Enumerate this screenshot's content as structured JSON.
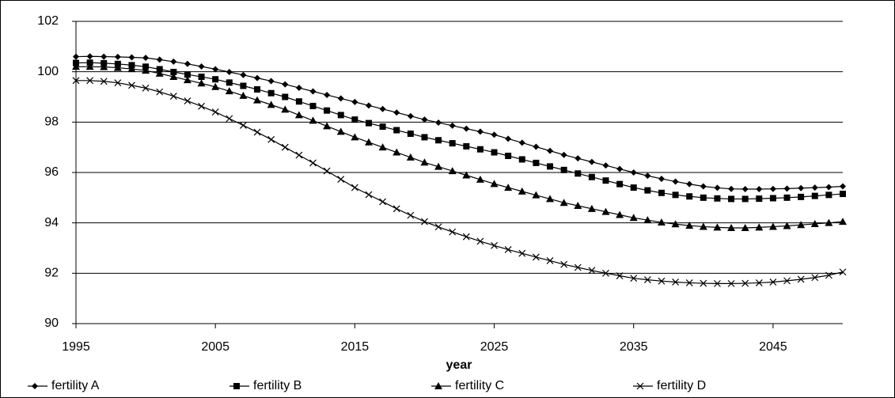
{
  "chart_data": {
    "type": "line",
    "x_label": "year",
    "x": [
      1995,
      1996,
      1997,
      1998,
      1999,
      2000,
      2001,
      2002,
      2003,
      2004,
      2005,
      2006,
      2007,
      2008,
      2009,
      2010,
      2011,
      2012,
      2013,
      2014,
      2015,
      2016,
      2017,
      2018,
      2019,
      2020,
      2021,
      2022,
      2023,
      2024,
      2025,
      2026,
      2027,
      2028,
      2029,
      2030,
      2031,
      2032,
      2033,
      2034,
      2035,
      2036,
      2037,
      2038,
      2039,
      2040,
      2041,
      2042,
      2043,
      2044,
      2045,
      2046,
      2047,
      2048,
      2049,
      2050
    ],
    "xlim": [
      1995,
      2050
    ],
    "xticks": [
      1995,
      2005,
      2015,
      2025,
      2035,
      2045
    ],
    "ylim": [
      90,
      102
    ],
    "yticks": [
      90,
      92,
      94,
      96,
      98,
      100,
      102
    ],
    "grid": true,
    "legend": "bottom",
    "series": [
      {
        "name": "fertility A",
        "color": "#000000",
        "marker": "diamond",
        "values": [
          100.6,
          100.61,
          100.6,
          100.59,
          100.57,
          100.55,
          100.48,
          100.4,
          100.31,
          100.21,
          100.1,
          99.99,
          99.87,
          99.75,
          99.63,
          99.5,
          99.36,
          99.22,
          99.08,
          98.94,
          98.8,
          98.66,
          98.52,
          98.38,
          98.24,
          98.1,
          97.98,
          97.86,
          97.74,
          97.62,
          97.5,
          97.34,
          97.18,
          97.02,
          96.86,
          96.7,
          96.56,
          96.42,
          96.28,
          96.14,
          96.0,
          95.87,
          95.75,
          95.64,
          95.54,
          95.45,
          95.39,
          95.35,
          95.34,
          95.34,
          95.35,
          95.36,
          95.38,
          95.4,
          95.42,
          95.45
        ]
      },
      {
        "name": "fertility B",
        "color": "#000000",
        "marker": "square",
        "values": [
          100.35,
          100.36,
          100.34,
          100.31,
          100.26,
          100.2,
          100.1,
          99.99,
          99.89,
          99.8,
          99.7,
          99.57,
          99.44,
          99.3,
          99.15,
          99.0,
          98.82,
          98.64,
          98.46,
          98.28,
          98.1,
          97.96,
          97.82,
          97.68,
          97.54,
          97.4,
          97.28,
          97.16,
          97.04,
          96.92,
          96.8,
          96.66,
          96.52,
          96.38,
          96.24,
          96.1,
          95.96,
          95.82,
          95.68,
          95.54,
          95.4,
          95.29,
          95.19,
          95.11,
          95.05,
          95.0,
          94.97,
          94.95,
          94.95,
          94.96,
          94.98,
          95.0,
          95.03,
          95.07,
          95.11,
          95.15
        ]
      },
      {
        "name": "fertility C",
        "color": "#000000",
        "marker": "triangle",
        "values": [
          100.2,
          100.2,
          100.19,
          100.16,
          100.11,
          100.05,
          99.93,
          99.8,
          99.67,
          99.54,
          99.4,
          99.23,
          99.05,
          98.87,
          98.69,
          98.5,
          98.28,
          98.06,
          97.84,
          97.62,
          97.4,
          97.2,
          97.0,
          96.8,
          96.6,
          96.4,
          96.23,
          96.06,
          95.89,
          95.72,
          95.55,
          95.4,
          95.25,
          95.1,
          94.95,
          94.8,
          94.68,
          94.56,
          94.44,
          94.32,
          94.2,
          94.11,
          94.02,
          93.95,
          93.89,
          93.85,
          93.82,
          93.8,
          93.8,
          93.82,
          93.85,
          93.88,
          93.92,
          93.96,
          94.0,
          94.05
        ]
      },
      {
        "name": "fertility D",
        "color": "#000000",
        "marker": "cross",
        "values": [
          99.65,
          99.65,
          99.62,
          99.56,
          99.46,
          99.35,
          99.2,
          99.03,
          98.84,
          98.63,
          98.4,
          98.14,
          97.87,
          97.6,
          97.31,
          97.0,
          96.69,
          96.38,
          96.06,
          95.73,
          95.4,
          95.12,
          94.84,
          94.56,
          94.3,
          94.05,
          93.84,
          93.64,
          93.45,
          93.27,
          93.1,
          92.94,
          92.79,
          92.64,
          92.5,
          92.35,
          92.23,
          92.11,
          92.0,
          91.9,
          91.8,
          91.74,
          91.69,
          91.65,
          91.62,
          91.6,
          91.59,
          91.59,
          91.6,
          91.62,
          91.65,
          91.7,
          91.76,
          91.83,
          91.92,
          92.05
        ]
      }
    ]
  }
}
